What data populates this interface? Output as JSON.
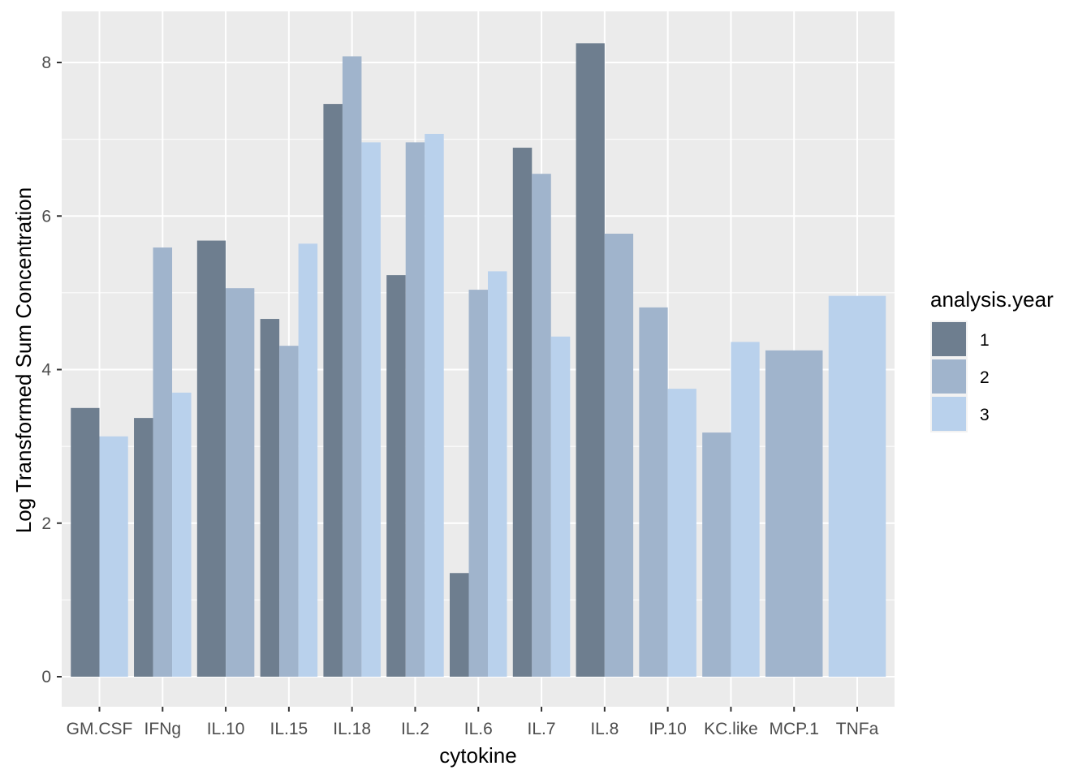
{
  "chart_data": {
    "type": "bar",
    "title": "",
    "xlabel": "cytokine",
    "ylabel": "Log Transformed Sum Concentration",
    "ylim": [
      0,
      8.6
    ],
    "yticks": [
      0,
      2,
      4,
      6,
      8
    ],
    "grid": true,
    "categories": [
      "GM.CSF",
      "IFNg",
      "IL.10",
      "IL.15",
      "IL.18",
      "IL.2",
      "IL.6",
      "IL.7",
      "IL.8",
      "IP.10",
      "KC.like",
      "MCP.1",
      "TNFa"
    ],
    "legend": {
      "title": "analysis.year",
      "position": "right"
    },
    "series": [
      {
        "name": "1",
        "color": "#6E7E8F",
        "values": [
          3.5,
          3.37,
          5.68,
          4.66,
          7.46,
          5.23,
          1.35,
          6.89,
          8.25,
          null,
          null,
          null,
          null
        ]
      },
      {
        "name": "2",
        "color": "#A0B4CC",
        "values": [
          null,
          5.59,
          5.06,
          4.31,
          8.08,
          6.96,
          5.04,
          6.55,
          5.77,
          4.81,
          3.18,
          4.25,
          null
        ]
      },
      {
        "name": "3",
        "color": "#B9D1EC",
        "values": [
          3.13,
          3.7,
          null,
          5.64,
          6.96,
          7.07,
          5.28,
          4.43,
          null,
          3.75,
          4.36,
          null,
          4.96
        ]
      }
    ]
  }
}
